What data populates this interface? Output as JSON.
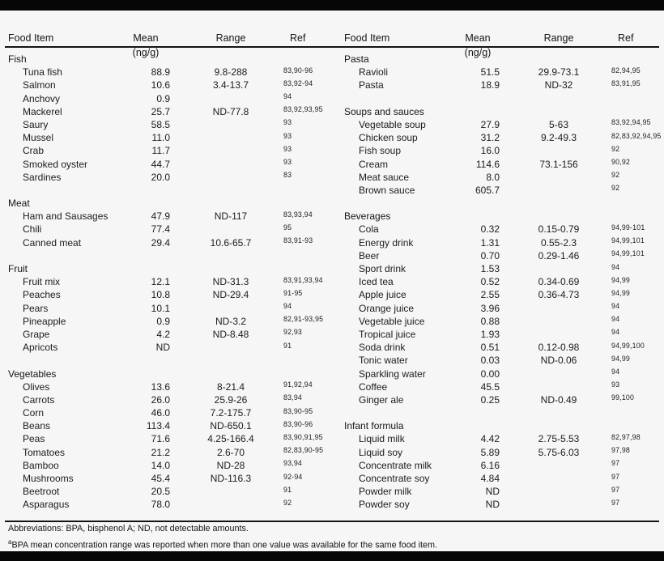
{
  "page": {
    "background": "#f6f6f6",
    "bar_color": "#060606"
  },
  "columns": {
    "food_item": "Food Item",
    "mean": "Mean (ng/g)",
    "range": "Range",
    "ref": "Ref"
  },
  "tables": [
    {
      "side": "left",
      "groups": [
        {
          "label": "Fish",
          "items": [
            {
              "name": "Tuna fish",
              "mean": "88.9",
              "range": "9.8-288",
              "ref": "83,90-96"
            },
            {
              "name": "Salmon",
              "mean": "10.6",
              "range": "3.4-13.7",
              "ref": "83,92-94"
            },
            {
              "name": "Anchovy",
              "mean": "0.9",
              "range": "",
              "ref": "94"
            },
            {
              "name": "Mackerel",
              "mean": "25.7",
              "range": "ND-77.8",
              "ref": "83,92,93,95"
            },
            {
              "name": "Saury",
              "mean": "58.5",
              "range": "",
              "ref": "93"
            },
            {
              "name": "Mussel",
              "mean": "11.0",
              "range": "",
              "ref": "93"
            },
            {
              "name": "Crab",
              "mean": "11.7",
              "range": "",
              "ref": "93"
            },
            {
              "name": "Smoked oyster",
              "mean": "44.7",
              "range": "",
              "ref": "93"
            },
            {
              "name": "Sardines",
              "mean": "20.0",
              "range": "",
              "ref": "83"
            }
          ]
        },
        {
          "label": "Meat",
          "items": [
            {
              "name": "Ham and Sausages",
              "mean": "47.9",
              "range": "ND-117",
              "ref": "83,93,94"
            },
            {
              "name": "Chili",
              "mean": "77.4",
              "range": "",
              "ref": "95"
            },
            {
              "name": "Canned meat",
              "mean": "29.4",
              "range": "10.6-65.7",
              "ref": "83,91-93"
            }
          ]
        },
        {
          "label": "Fruit",
          "items": [
            {
              "name": "Fruit mix",
              "mean": "12.1",
              "range": "ND-31.3",
              "ref": "83,91,93,94"
            },
            {
              "name": "Peaches",
              "mean": "10.8",
              "range": "ND-29.4",
              "ref": "91-95"
            },
            {
              "name": "Pears",
              "mean": "10.1",
              "range": "",
              "ref": "94"
            },
            {
              "name": "Pineapple",
              "mean": "0.9",
              "range": "ND-3.2",
              "ref": "82,91-93,95"
            },
            {
              "name": "Grape",
              "mean": "4.2",
              "range": "ND-8.48",
              "ref": "92,93"
            },
            {
              "name": "Apricots",
              "mean": "ND",
              "range": "",
              "ref": "91"
            }
          ]
        },
        {
          "label": "Vegetables",
          "items": [
            {
              "name": "Olives",
              "mean": "13.6",
              "range": "8-21.4",
              "ref": "91,92,94"
            },
            {
              "name": "Carrots",
              "mean": "26.0",
              "range": "25.9-26",
              "ref": "83,94"
            },
            {
              "name": "Corn",
              "mean": "46.0",
              "range": "7.2-175.7",
              "ref": "83,90-95"
            },
            {
              "name": "Beans",
              "mean": "113.4",
              "range": "ND-650.1",
              "ref": "83,90-96"
            },
            {
              "name": "Peas",
              "mean": "71.6",
              "range": "4.25-166.4",
              "ref": "83,90,91,95"
            },
            {
              "name": "Tomatoes",
              "mean": "21.2",
              "range": "2.6-70",
              "ref": "82,83,90-95"
            },
            {
              "name": "Bamboo",
              "mean": "14.0",
              "range": "ND-28",
              "ref": "93,94"
            },
            {
              "name": "Mushrooms",
              "mean": "45.4",
              "range": "ND-116.3",
              "ref": "92-94"
            },
            {
              "name": "Beetroot",
              "mean": "20.5",
              "range": "",
              "ref": "91"
            },
            {
              "name": "Asparagus",
              "mean": "78.0",
              "range": "",
              "ref": "92"
            }
          ]
        }
      ]
    },
    {
      "side": "right",
      "groups": [
        {
          "label": "Pasta",
          "items": [
            {
              "name": "Ravioli",
              "mean": "51.5",
              "range": "29.9-73.1",
              "ref": "82,94,95"
            },
            {
              "name": "Pasta",
              "mean": "18.9",
              "range": "ND-32",
              "ref": "83,91,95"
            }
          ]
        },
        {
          "label": "Soups and sauces",
          "items": [
            {
              "name": "Vegetable soup",
              "mean": "27.9",
              "range": "5-63",
              "ref": "83,92,94,95"
            },
            {
              "name": "Chicken soup",
              "mean": "31.2",
              "range": "9.2-49.3",
              "ref": "82,83,92,94,95"
            },
            {
              "name": "Fish soup",
              "mean": "16.0",
              "range": "",
              "ref": "92"
            },
            {
              "name": "Cream",
              "mean": "114.6",
              "range": "73.1-156",
              "ref": "90,92"
            },
            {
              "name": "Meat sauce",
              "mean": "8.0",
              "range": "",
              "ref": "92"
            },
            {
              "name": "Brown sauce",
              "mean": "605.7",
              "range": "",
              "ref": "92"
            }
          ]
        },
        {
          "label": "Beverages",
          "items": [
            {
              "name": "Cola",
              "mean": "0.32",
              "range": "0.15-0.79",
              "ref": "94,99-101"
            },
            {
              "name": "Energy drink",
              "mean": "1.31",
              "range": "0.55-2.3",
              "ref": "94,99,101"
            },
            {
              "name": "Beer",
              "mean": "0.70",
              "range": "0.29-1.46",
              "ref": "94,99,101"
            },
            {
              "name": "Sport drink",
              "mean": "1.53",
              "range": "",
              "ref": "94"
            },
            {
              "name": "Iced tea",
              "mean": "0.52",
              "range": "0.34-0.69",
              "ref": "94,99"
            },
            {
              "name": "Apple juice",
              "mean": "2.55",
              "range": "0.36-4.73",
              "ref": "94,99"
            },
            {
              "name": "Orange juice",
              "mean": "3.96",
              "range": "",
              "ref": "94"
            },
            {
              "name": "Vegetable juice",
              "mean": "0.88",
              "range": "",
              "ref": "94"
            },
            {
              "name": "Tropical juice",
              "mean": "1.93",
              "range": "",
              "ref": "94"
            },
            {
              "name": "Soda drink",
              "mean": "0.51",
              "range": "0.12-0.98",
              "ref": "94,99,100"
            },
            {
              "name": "Tonic water",
              "mean": "0.03",
              "range": "ND-0.06",
              "ref": "94,99"
            },
            {
              "name": "Sparkling water",
              "mean": "0.00",
              "range": "",
              "ref": "94"
            },
            {
              "name": "Coffee",
              "mean": "45.5",
              "range": "",
              "ref": "93"
            },
            {
              "name": "Ginger ale",
              "mean": "0.25",
              "range": "ND-0.49",
              "ref": "99,100"
            }
          ]
        },
        {
          "label": "Infant formula",
          "items": [
            {
              "name": "Liquid milk",
              "mean": "4.42",
              "range": "2.75-5.53",
              "ref": "82,97,98"
            },
            {
              "name": "Liquid soy",
              "mean": "5.89",
              "range": "5.75-6.03",
              "ref": "97,98"
            },
            {
              "name": "Concentrate milk",
              "mean": "6.16",
              "range": "",
              "ref": "97"
            },
            {
              "name": "Concentrate soy",
              "mean": "4.84",
              "range": "",
              "ref": "97"
            },
            {
              "name": "Powder milk",
              "mean": "ND",
              "range": "",
              "ref": "97"
            },
            {
              "name": "Powder soy",
              "mean": "ND",
              "range": "",
              "ref": "97"
            }
          ]
        }
      ]
    }
  ],
  "footnotes": {
    "abbreviations": "Abbreviations: BPA, bisphenol A; ND, not detectable amounts.",
    "note_marker": "a",
    "note_text": "BPA mean concentration range was reported when more than one value was available for the same food item."
  }
}
